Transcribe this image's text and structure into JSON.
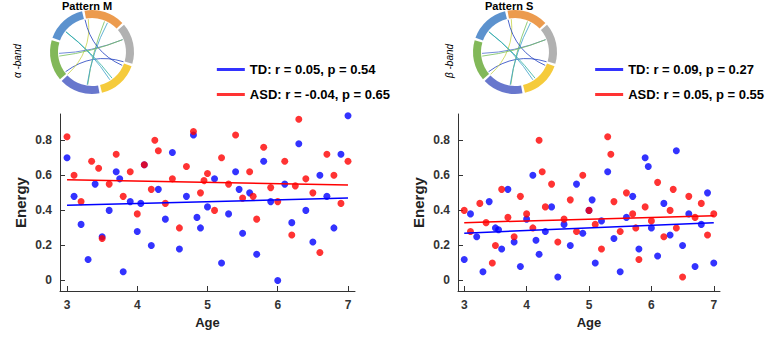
{
  "chart_data": [
    {
      "type": "scatter",
      "title": "Pattern M",
      "annotations": [
        "α -band"
      ],
      "x_label": "Age",
      "y_label": "Energy",
      "xlim": [
        2.9,
        7.1
      ],
      "xticks": [
        3,
        4,
        5,
        6,
        7
      ],
      "ylim": [
        -0.06,
        0.95
      ],
      "yticks": [
        0,
        0.2,
        0.4,
        0.6,
        0.8
      ],
      "grid": false,
      "legend": "top",
      "series": [
        {
          "name": "TD: r = 0.05, p = 0.54",
          "color": "#0000ff",
          "marker": "circle",
          "x": [
            3.0,
            3.1,
            3.2,
            3.3,
            3.4,
            3.5,
            3.6,
            3.7,
            3.8,
            3.9,
            4.0,
            4.1,
            4.2,
            4.3,
            4.4,
            4.5,
            4.6,
            4.7,
            4.8,
            4.9,
            5.0,
            5.1,
            5.2,
            5.3,
            5.4,
            5.5,
            5.6,
            5.7,
            5.8,
            5.9,
            6.0,
            6.1,
            6.2,
            6.3,
            6.4,
            6.5,
            6.6,
            6.7,
            6.8,
            6.9,
            7.0,
            4.05,
            4.85,
            5.45,
            3.75
          ],
          "values": [
            0.7,
            0.48,
            0.32,
            0.12,
            0.55,
            0.25,
            0.4,
            0.62,
            0.05,
            0.45,
            0.28,
            0.66,
            0.2,
            0.52,
            0.35,
            0.73,
            0.18,
            0.48,
            0.83,
            0.3,
            0.42,
            0.58,
            0.1,
            0.38,
            0.62,
            0.27,
            0.5,
            0.15,
            0.68,
            0.45,
            0.0,
            0.55,
            0.33,
            0.78,
            0.4,
            0.22,
            0.6,
            0.48,
            0.3,
            0.72,
            0.94,
            0.44,
            0.36,
            0.52,
            0.58
          ],
          "fit": {
            "x": [
              3,
              7
            ],
            "values": [
              0.43,
              0.47
            ]
          }
        },
        {
          "name": "ASD: r = -0.04, p = 0.65",
          "color": "#ff0000",
          "marker": "circle",
          "x": [
            3.0,
            3.1,
            3.2,
            3.35,
            3.5,
            3.6,
            3.7,
            3.8,
            3.9,
            4.0,
            4.1,
            4.2,
            4.3,
            4.4,
            4.5,
            4.6,
            4.7,
            4.8,
            4.9,
            5.0,
            5.1,
            5.2,
            5.3,
            5.4,
            5.5,
            5.6,
            5.7,
            5.8,
            5.9,
            6.0,
            6.1,
            6.2,
            6.3,
            6.4,
            6.5,
            6.6,
            6.7,
            6.8,
            6.9,
            7.0,
            4.25,
            4.95,
            5.65,
            3.45,
            6.25
          ],
          "values": [
            0.82,
            0.6,
            0.45,
            0.68,
            0.24,
            0.55,
            0.72,
            0.48,
            0.62,
            0.38,
            0.66,
            0.52,
            0.74,
            0.44,
            0.58,
            0.3,
            0.65,
            0.85,
            0.5,
            0.61,
            0.4,
            0.7,
            0.55,
            0.83,
            0.47,
            0.62,
            0.35,
            0.76,
            0.53,
            0.45,
            0.68,
            0.26,
            0.92,
            0.58,
            0.5,
            0.16,
            0.72,
            0.6,
            0.44,
            0.68,
            0.8,
            0.57,
            0.48,
            0.64,
            0.54
          ],
          "fit": {
            "x": [
              3,
              7
            ],
            "values": [
              0.575,
              0.545
            ]
          }
        }
      ]
    },
    {
      "type": "scatter",
      "title": "Pattern S",
      "annotations": [
        "β -band"
      ],
      "x_label": "Age",
      "y_label": "Energy",
      "xlim": [
        2.9,
        7.1
      ],
      "xticks": [
        3,
        4,
        5,
        6,
        7
      ],
      "ylim": [
        -0.06,
        0.95
      ],
      "yticks": [
        0,
        0.2,
        0.4,
        0.6,
        0.8
      ],
      "grid": false,
      "legend": "top",
      "series": [
        {
          "name": "TD: r = 0.09, p = 0.27",
          "color": "#0000ff",
          "marker": "circle",
          "x": [
            3.0,
            3.1,
            3.2,
            3.3,
            3.4,
            3.5,
            3.6,
            3.7,
            3.8,
            3.9,
            4.0,
            4.1,
            4.2,
            4.3,
            4.4,
            4.5,
            4.6,
            4.7,
            4.8,
            4.9,
            5.0,
            5.1,
            5.2,
            5.3,
            5.4,
            5.5,
            5.6,
            5.7,
            5.8,
            5.9,
            6.0,
            6.1,
            6.2,
            6.3,
            6.4,
            6.5,
            6.6,
            6.7,
            6.8,
            6.9,
            7.0,
            4.15,
            5.05,
            5.95,
            3.55
          ],
          "values": [
            0.12,
            0.38,
            0.25,
            0.05,
            0.45,
            0.3,
            0.18,
            0.52,
            0.22,
            0.08,
            0.35,
            0.6,
            0.15,
            0.28,
            0.42,
            0.02,
            0.32,
            0.2,
            0.55,
            0.27,
            0.4,
            0.1,
            0.34,
            0.62,
            0.24,
            0.05,
            0.36,
            0.48,
            0.18,
            0.7,
            0.3,
            0.14,
            0.44,
            0.26,
            0.74,
            0.2,
            0.38,
            0.08,
            0.32,
            0.5,
            0.1,
            0.23,
            0.46,
            0.65,
            0.29
          ],
          "fit": {
            "x": [
              3,
              7
            ],
            "values": [
              0.27,
              0.33
            ]
          }
        },
        {
          "name": "ASD: r = 0.05, p = 0.55",
          "color": "#ff0000",
          "marker": "circle",
          "x": [
            3.0,
            3.1,
            3.25,
            3.35,
            3.5,
            3.6,
            3.7,
            3.8,
            3.9,
            4.0,
            4.1,
            4.2,
            4.3,
            4.4,
            4.5,
            4.6,
            4.7,
            4.8,
            4.9,
            5.0,
            5.1,
            5.2,
            5.3,
            5.4,
            5.5,
            5.6,
            5.7,
            5.8,
            5.9,
            6.0,
            6.1,
            6.2,
            6.3,
            6.4,
            6.5,
            6.6,
            6.7,
            6.8,
            6.9,
            7.0,
            4.25,
            5.35,
            5.75,
            3.45,
            6.35
          ],
          "values": [
            0.4,
            0.28,
            0.44,
            0.33,
            0.2,
            0.52,
            0.36,
            0.25,
            0.48,
            0.38,
            0.3,
            0.8,
            0.42,
            0.55,
            0.22,
            0.35,
            0.46,
            0.28,
            0.6,
            0.4,
            0.32,
            0.18,
            0.82,
            0.45,
            0.28,
            0.5,
            0.38,
            0.12,
            0.42,
            0.34,
            0.56,
            0.25,
            0.4,
            0.3,
            0.02,
            0.48,
            0.36,
            0.44,
            0.26,
            0.38,
            0.62,
            0.72,
            0.3,
            0.1,
            0.52
          ],
          "fit": {
            "x": [
              3,
              7
            ],
            "values": [
              0.33,
              0.37
            ]
          }
        }
      ]
    }
  ]
}
